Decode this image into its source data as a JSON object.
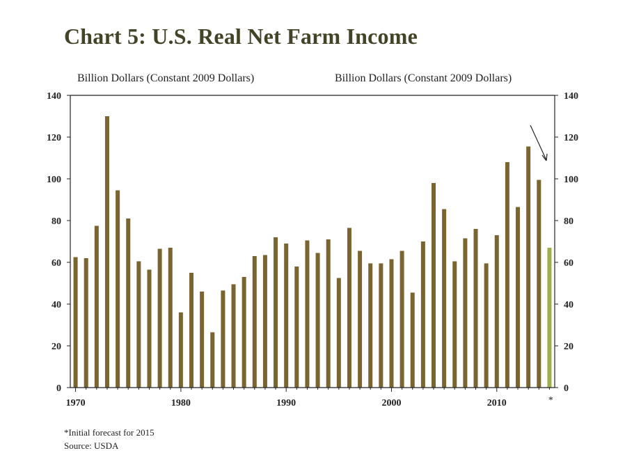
{
  "chart_data": {
    "type": "bar",
    "title": "Chart 5: U.S. Real Net Farm Income",
    "ylabel_left": "Billion Dollars (Constant 2009 Dollars)",
    "ylabel_right": "Billion Dollars (Constant 2009 Dollars)",
    "ylim": [
      0,
      140
    ],
    "yticks": [
      0,
      20,
      40,
      60,
      80,
      100,
      120,
      140
    ],
    "xlim": [
      1969.5,
      2015.5
    ],
    "xtick_values": [
      1970,
      1980,
      1990,
      2000,
      2010
    ],
    "xtick_labels": [
      "1970",
      "1980",
      "1990",
      "2000",
      "2010"
    ],
    "forecast_marker": "*",
    "grid": false,
    "x": [
      1970,
      1971,
      1972,
      1973,
      1974,
      1975,
      1976,
      1977,
      1978,
      1979,
      1980,
      1981,
      1982,
      1983,
      1984,
      1985,
      1986,
      1987,
      1988,
      1989,
      1990,
      1991,
      1992,
      1993,
      1994,
      1995,
      1996,
      1997,
      1998,
      1999,
      2000,
      2001,
      2002,
      2003,
      2004,
      2005,
      2006,
      2007,
      2008,
      2009,
      2010,
      2011,
      2012,
      2013,
      2014,
      2015
    ],
    "values": [
      62.5,
      62,
      77.5,
      130,
      94.5,
      81,
      60.5,
      56.5,
      66.5,
      67,
      36,
      55,
      46,
      26.5,
      46.5,
      49.5,
      53,
      63,
      63.5,
      72,
      69,
      58,
      70.5,
      64.5,
      71,
      52.5,
      76.5,
      65.5,
      59.5,
      59.5,
      61.5,
      65.5,
      45.5,
      70,
      98,
      85.5,
      60.5,
      71.5,
      76,
      59.5,
      73,
      108,
      86.5,
      115.5,
      99.5,
      67
    ],
    "forecast_index": 45,
    "colors": {
      "bar": "#7a6530",
      "forecast": "#9fb048",
      "title": "#434327"
    }
  },
  "footnote": "*Initial forecast for 2015",
  "source": "Source: USDA"
}
